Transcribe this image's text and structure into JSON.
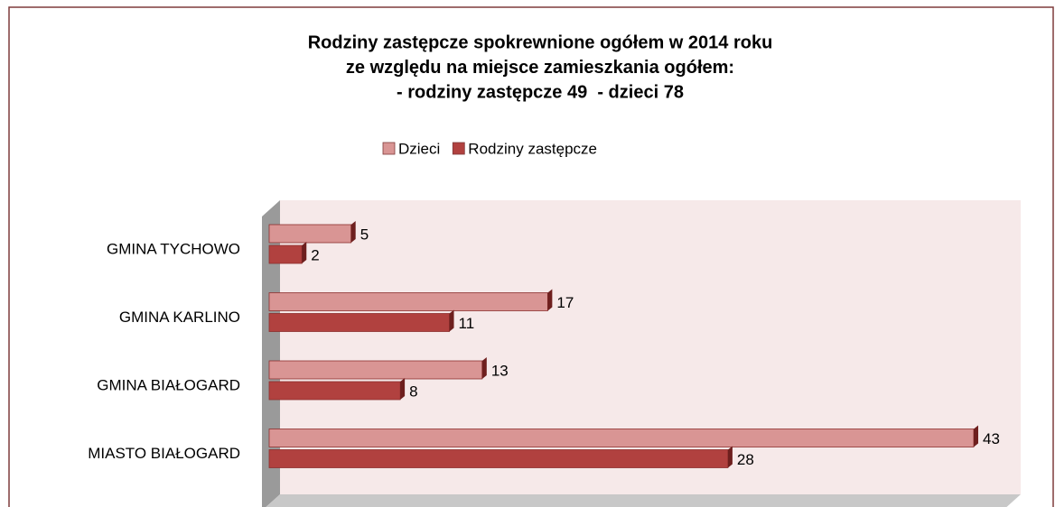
{
  "chart_data": {
    "type": "bar",
    "orientation": "horizontal",
    "title": [
      "Rodziny zastępcze spokrewnione ogółem w 2014 roku",
      "ze względu na miejsce zamieszkania ogółem:",
      "- rodziny zastępcze 49  - dzieci 78"
    ],
    "categories": [
      "GMINA TYCHOWO",
      "GMINA KARLINO",
      "GMINA BIAŁOGARD",
      "MIASTO BIAŁOGARD"
    ],
    "series": [
      {
        "name": "Dzieci",
        "color": "#d99594",
        "values": [
          5,
          17,
          13,
          43
        ]
      },
      {
        "name": "Rodziny zastępcze",
        "color": "#b1413f",
        "values": [
          2,
          11,
          8,
          28
        ]
      }
    ],
    "legend": "top"
  }
}
